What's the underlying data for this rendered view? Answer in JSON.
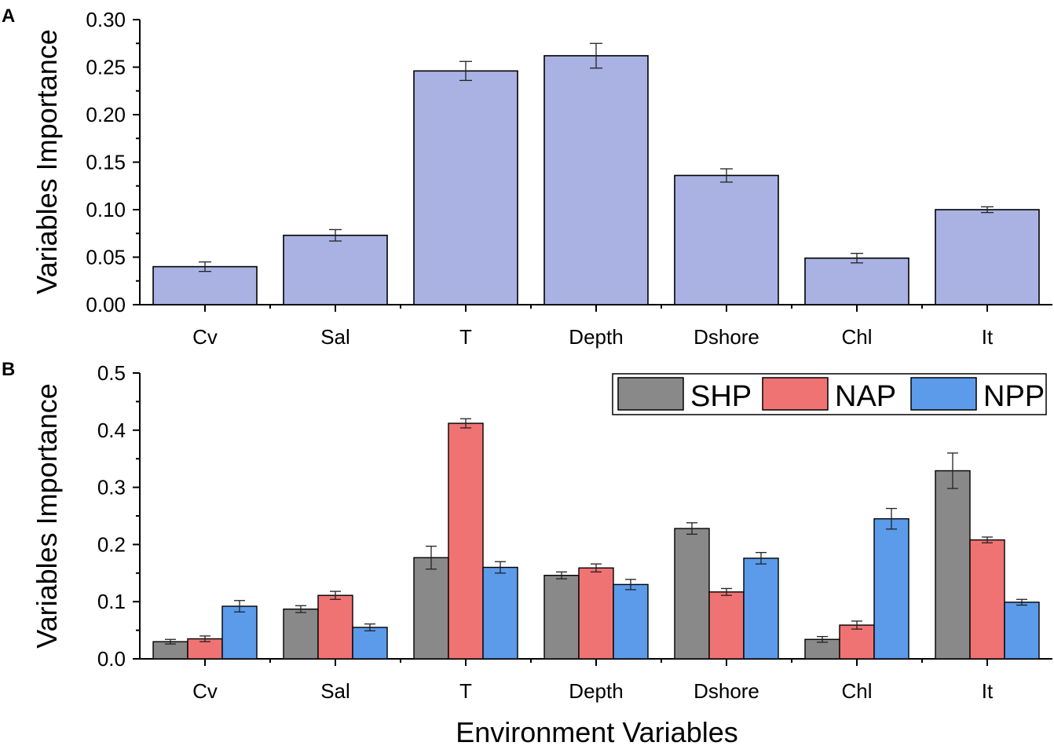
{
  "chart_data": [
    {
      "panel": "A",
      "type": "bar",
      "categories": [
        "Cv",
        "Sal",
        "T",
        "Depth",
        "Dshore",
        "Chl",
        "It"
      ],
      "values": [
        0.04,
        0.073,
        0.246,
        0.262,
        0.136,
        0.049,
        0.1
      ],
      "errors": [
        0.005,
        0.006,
        0.01,
        0.013,
        0.007,
        0.005,
        0.003
      ],
      "color": "#a9b2e3",
      "xlabel": "",
      "ylabel": "Variables Importance",
      "ylim": [
        0,
        0.3
      ],
      "yticks": [
        "0.00",
        "0.05",
        "0.10",
        "0.15",
        "0.20",
        "0.25",
        "0.30"
      ],
      "grid": false
    },
    {
      "panel": "B",
      "type": "bar",
      "categories": [
        "Cv",
        "Sal",
        "T",
        "Depth",
        "Dshore",
        "Chl",
        "It"
      ],
      "series": [
        {
          "name": "SHP",
          "color": "#898989",
          "values": [
            0.03,
            0.087,
            0.177,
            0.146,
            0.228,
            0.034,
            0.329
          ],
          "errors": [
            0.004,
            0.006,
            0.02,
            0.006,
            0.01,
            0.005,
            0.031
          ]
        },
        {
          "name": "NAP",
          "color": "#f07373",
          "values": [
            0.035,
            0.111,
            0.412,
            0.159,
            0.117,
            0.059,
            0.208
          ],
          "errors": [
            0.005,
            0.007,
            0.008,
            0.007,
            0.006,
            0.007,
            0.005
          ]
        },
        {
          "name": "NPP",
          "color": "#5b9bea",
          "values": [
            0.092,
            0.055,
            0.16,
            0.13,
            0.176,
            0.245,
            0.099
          ],
          "errors": [
            0.01,
            0.006,
            0.01,
            0.009,
            0.01,
            0.018,
            0.005
          ]
        }
      ],
      "xlabel": "Environment Variables",
      "ylabel": "Variables Importance",
      "ylim": [
        0,
        0.5
      ],
      "yticks": [
        "0.0",
        "0.1",
        "0.2",
        "0.3",
        "0.4",
        "0.5"
      ],
      "legend": "top-right",
      "grid": false
    }
  ]
}
